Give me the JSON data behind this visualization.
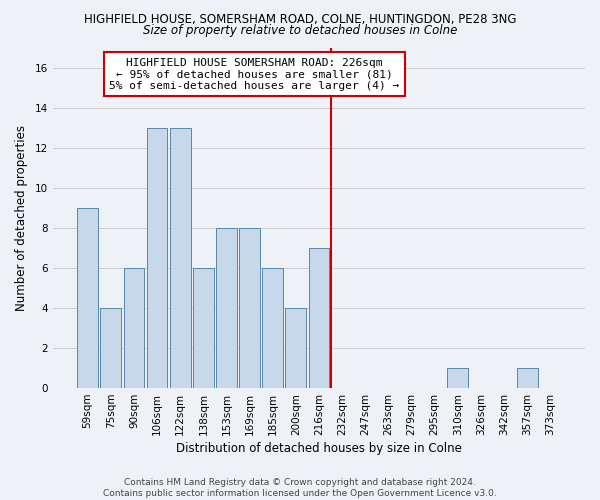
{
  "title": "HIGHFIELD HOUSE, SOMERSHAM ROAD, COLNE, HUNTINGDON, PE28 3NG",
  "subtitle": "Size of property relative to detached houses in Colne",
  "xlabel": "Distribution of detached houses by size in Colne",
  "ylabel": "Number of detached properties",
  "bin_labels": [
    "59sqm",
    "75sqm",
    "90sqm",
    "106sqm",
    "122sqm",
    "138sqm",
    "153sqm",
    "169sqm",
    "185sqm",
    "200sqm",
    "216sqm",
    "232sqm",
    "247sqm",
    "263sqm",
    "279sqm",
    "295sqm",
    "310sqm",
    "326sqm",
    "342sqm",
    "357sqm",
    "373sqm"
  ],
  "bar_values": [
    9,
    4,
    6,
    13,
    13,
    6,
    8,
    8,
    6,
    4,
    7,
    0,
    0,
    0,
    0,
    0,
    1,
    0,
    0,
    1,
    0
  ],
  "bar_color": "#c8d8eb",
  "bar_edge_color": "#5588aa",
  "marker_bin_index": 11,
  "marker_color": "#cc0000",
  "annotation_text": "HIGHFIELD HOUSE SOMERSHAM ROAD: 226sqm\n← 95% of detached houses are smaller (81)\n5% of semi-detached houses are larger (4) →",
  "annotation_box_color": "#ffffff",
  "annotation_border_color": "#cc0000",
  "ylim": [
    0,
    17
  ],
  "yticks": [
    0,
    2,
    4,
    6,
    8,
    10,
    12,
    14,
    16
  ],
  "grid_color": "#cccccc",
  "background_color": "#eef2f7",
  "footer_text": "Contains HM Land Registry data © Crown copyright and database right 2024.\nContains public sector information licensed under the Open Government Licence v3.0.",
  "title_fontsize": 8.5,
  "subtitle_fontsize": 8.5,
  "axis_label_fontsize": 8.5,
  "tick_fontsize": 7.5,
  "annotation_fontsize": 8,
  "footer_fontsize": 6.5
}
